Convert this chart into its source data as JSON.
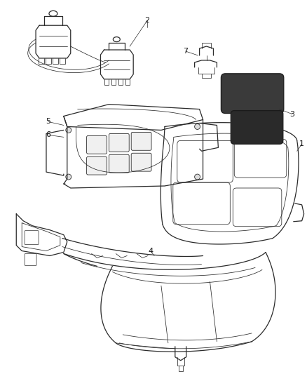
{
  "background_color": "#ffffff",
  "line_color": "#2a2a2a",
  "label_color": "#1a1a1a",
  "fig_width": 4.38,
  "fig_height": 5.33,
  "dpi": 100
}
